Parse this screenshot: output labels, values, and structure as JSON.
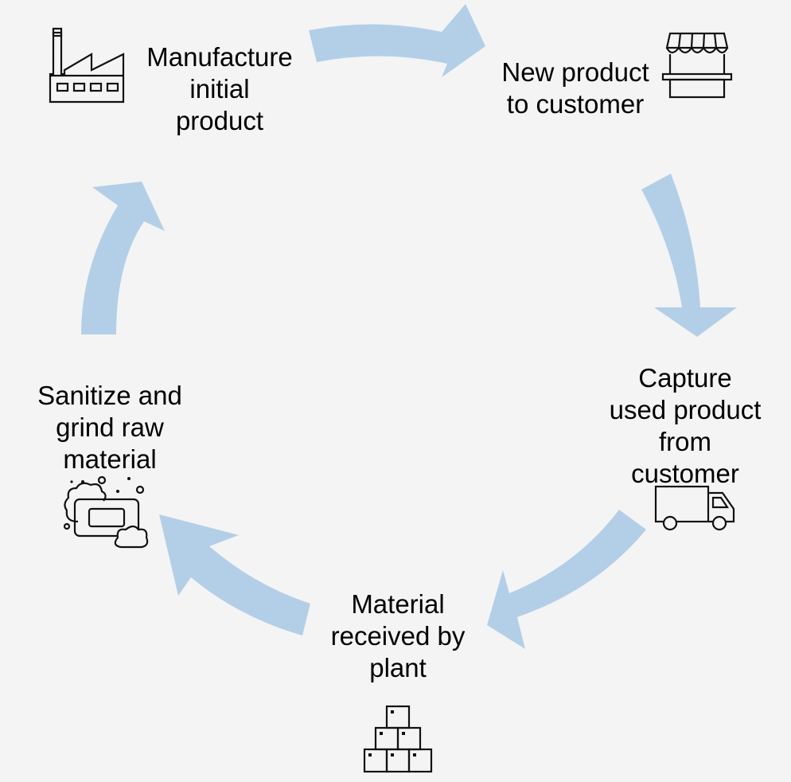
{
  "diagram": {
    "type": "cycle",
    "arrow_color": "#b3cfe8",
    "steps": [
      {
        "id": "manufacture",
        "lines": [
          "Manufacture",
          "initial",
          "product"
        ],
        "icon": "factory-icon"
      },
      {
        "id": "new-product",
        "lines": [
          "New product",
          "to customer"
        ],
        "icon": "storefront-icon"
      },
      {
        "id": "capture",
        "lines": [
          "Capture",
          "used product",
          "from",
          "customer"
        ],
        "icon": "delivery-truck-icon"
      },
      {
        "id": "material",
        "lines": [
          "Material",
          "received by",
          "plant"
        ],
        "icon": "stacked-boxes-icon"
      },
      {
        "id": "sanitize",
        "lines": [
          "Sanitize and",
          "grind raw",
          "material"
        ],
        "icon": "soap-bubbles-icon"
      }
    ]
  }
}
